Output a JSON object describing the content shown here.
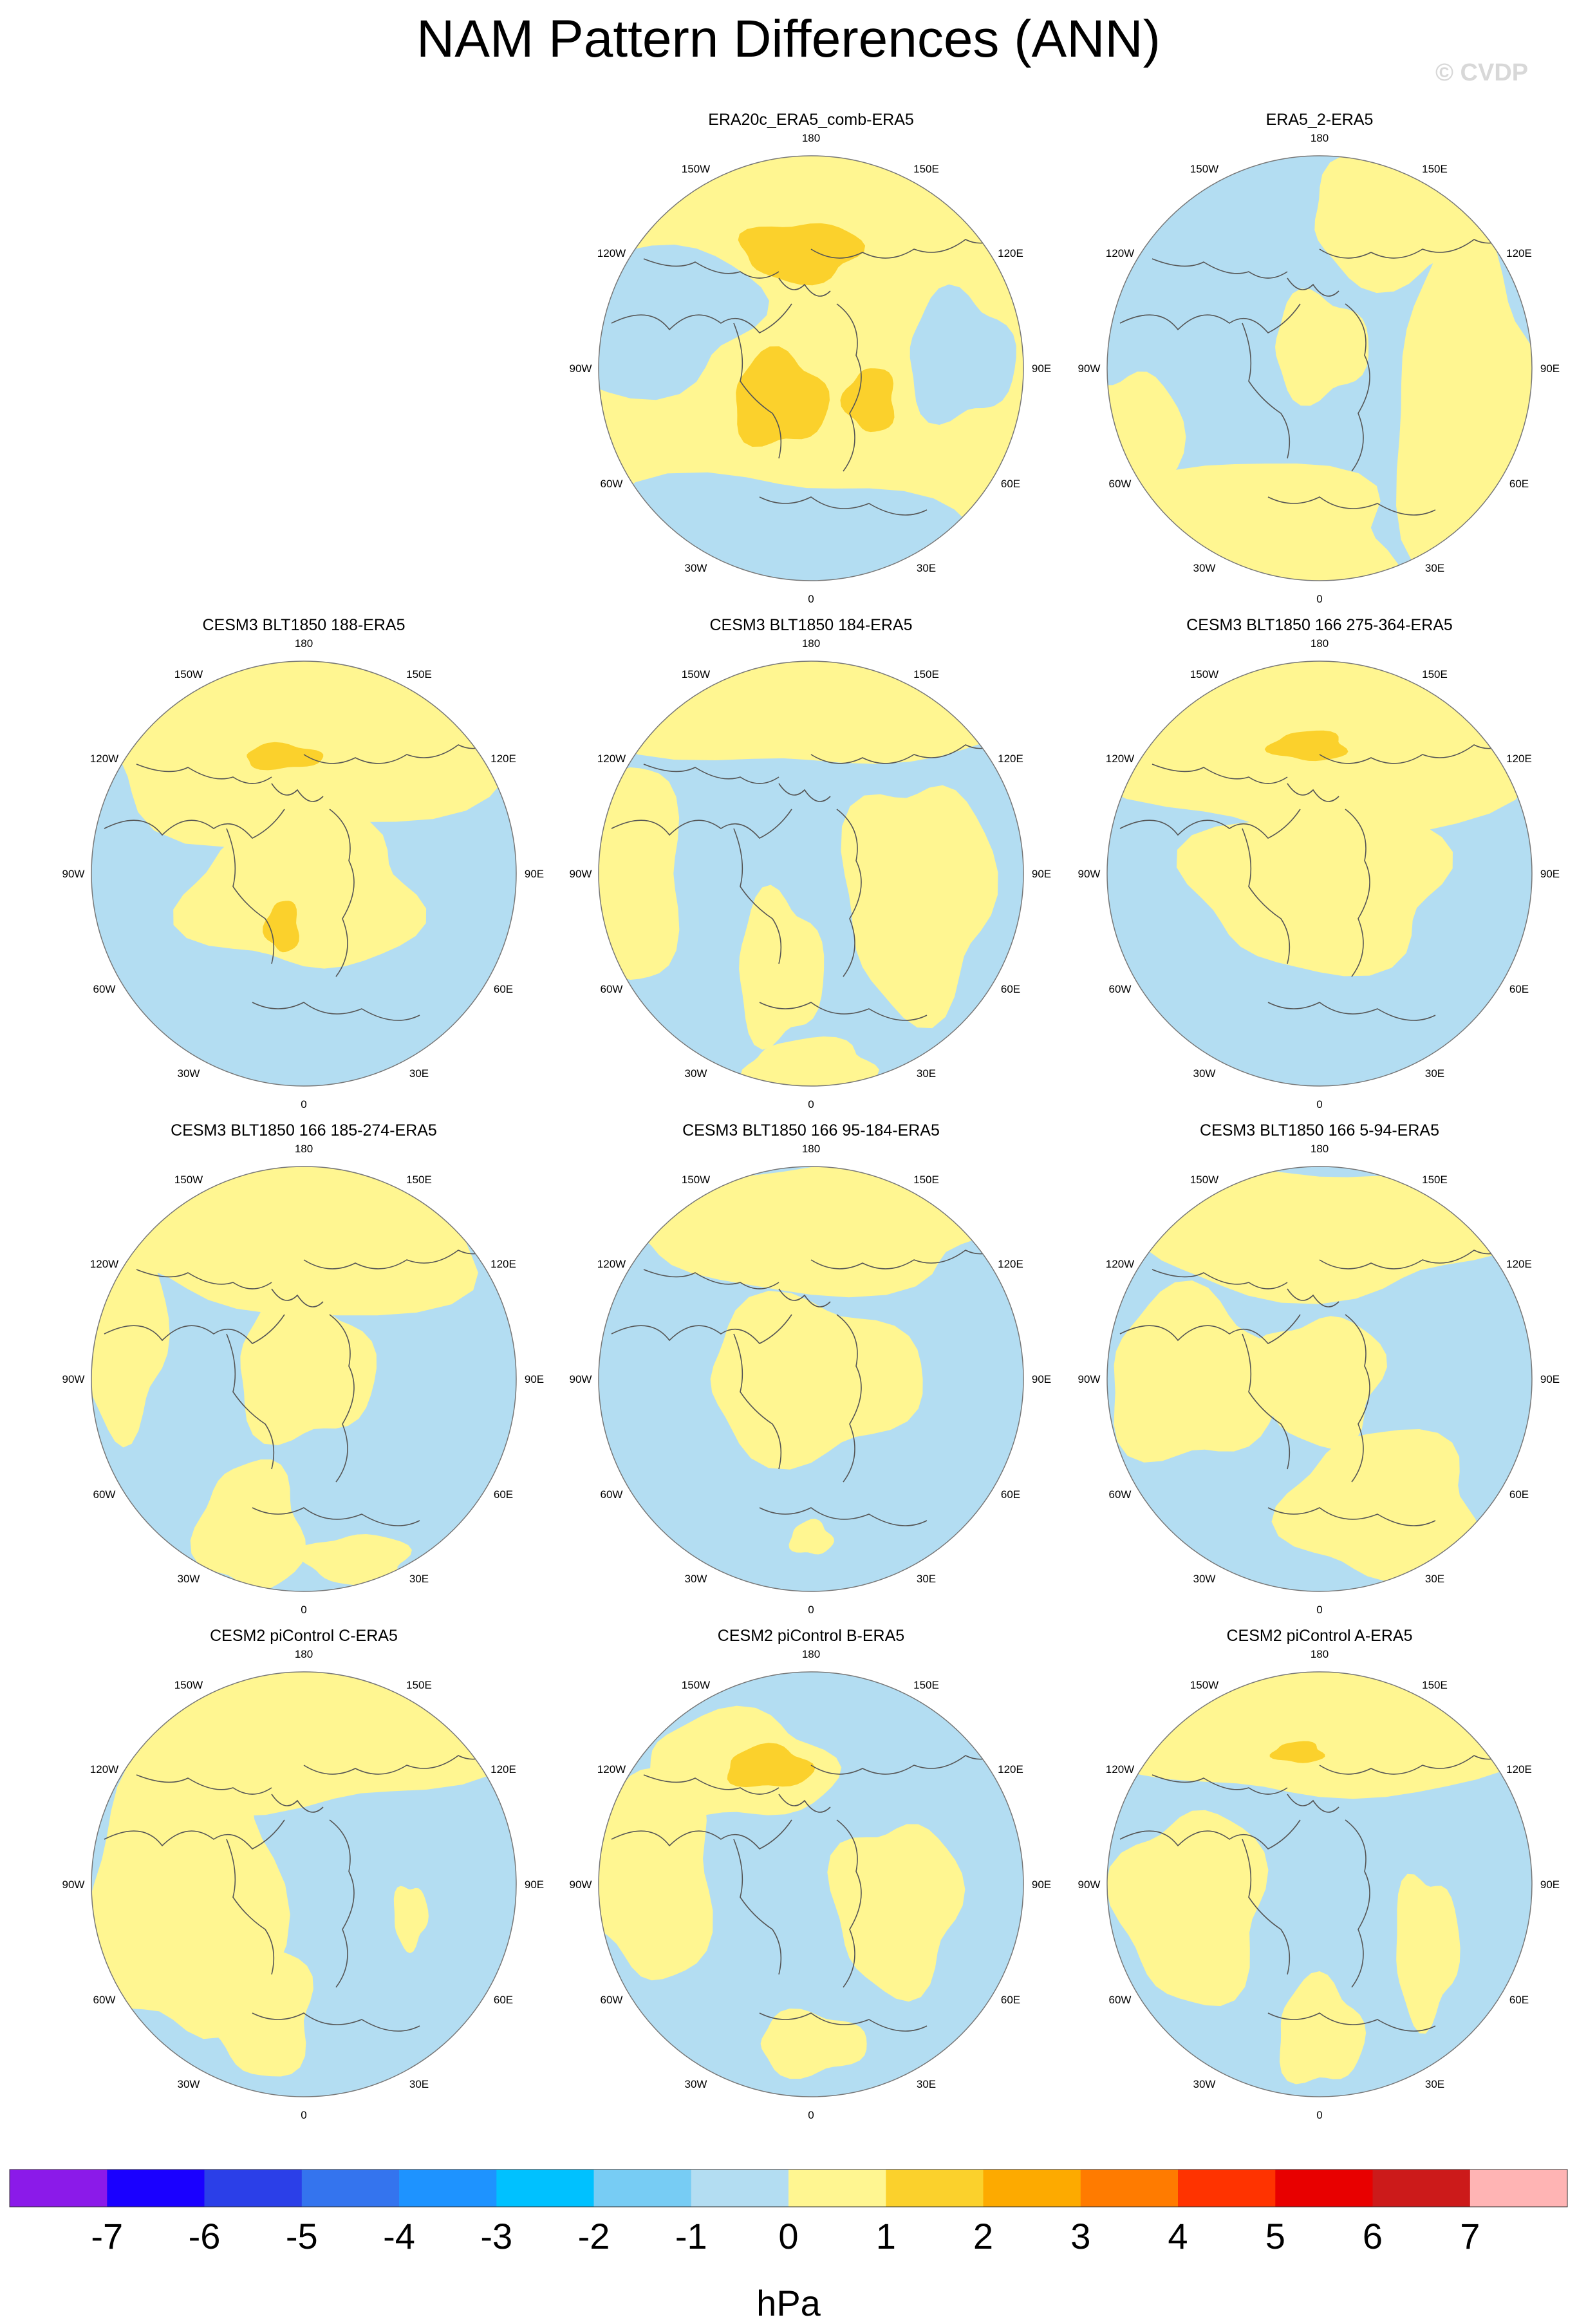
{
  "title": "NAM Pattern Differences (ANN)",
  "watermark": "© CVDP",
  "colors": {
    "positive_small": "#fff691",
    "positive_mid": "#fbd12c",
    "negative_small": "#b3ddf2",
    "coastline": "#555555"
  },
  "chart_data": {
    "type": "heatmap",
    "projection": "north-polar-stereographic",
    "units": "hPa",
    "longitude_labels": [
      "180",
      "150E",
      "120E",
      "90E",
      "60E",
      "30E",
      "0",
      "30W",
      "60W",
      "90W",
      "120W",
      "150W"
    ],
    "colorbar": {
      "colors": [
        "#8b1ae9",
        "#1a00ff",
        "#2b3fe8",
        "#3474ee",
        "#1e93ff",
        "#00c1ff",
        "#77ccf4",
        "#b3ddf2",
        "#fff691",
        "#fbd12c",
        "#fdaa00",
        "#ff7b00",
        "#ff3300",
        "#e80000",
        "#cc1a1a",
        "#ffb4b4"
      ],
      "ticks": [
        "-7",
        "-6",
        "-5",
        "-4",
        "-3",
        "-2",
        "-1",
        "0",
        "1",
        "2",
        "3",
        "4",
        "5",
        "6",
        "7"
      ]
    },
    "panels": [
      {
        "title": "ERA20c_ERA5_comb-ERA5",
        "row": 0,
        "col": 1,
        "base": "positive_small",
        "blue": [
          [
            -0.85,
            0.25,
            0.6,
            0.35
          ],
          [
            -0.15,
            -0.85,
            0.9,
            0.35
          ],
          [
            0.7,
            0.05,
            0.25,
            0.3
          ]
        ],
        "yellow": [],
        "orange": [
          [
            -0.05,
            0.55,
            0.28,
            0.14
          ],
          [
            -0.15,
            -0.15,
            0.22,
            0.22
          ],
          [
            0.28,
            -0.15,
            0.12,
            0.15
          ]
        ]
      },
      {
        "title": "ERA5_2-ERA5",
        "row": 0,
        "col": 2,
        "base": "negative_small",
        "blue": [],
        "yellow": [
          [
            0.35,
            0.7,
            0.4,
            0.3
          ],
          [
            0.7,
            -0.2,
            0.35,
            0.8
          ],
          [
            -0.4,
            -0.8,
            0.8,
            0.35
          ],
          [
            -0.9,
            -0.4,
            0.25,
            0.4
          ],
          [
            0.0,
            0.1,
            0.22,
            0.25
          ]
        ],
        "orange": []
      },
      {
        "title": "CESM3 BLT1850 188-ERA5",
        "row": 1,
        "col": 0,
        "base": "negative_small",
        "blue": [],
        "yellow": [
          [
            0.0,
            0.6,
            0.95,
            0.45
          ],
          [
            0.0,
            -0.1,
            0.55,
            0.35
          ]
        ],
        "orange": [
          [
            -0.1,
            0.55,
            0.18,
            0.06
          ],
          [
            -0.1,
            -0.25,
            0.08,
            0.12
          ]
        ]
      },
      {
        "title": "CESM3 BLT1850 184-ERA5",
        "row": 1,
        "col": 1,
        "base": "negative_small",
        "blue": [],
        "yellow": [
          [
            0.0,
            0.75,
            0.9,
            0.25
          ],
          [
            -0.85,
            0.0,
            0.25,
            0.5
          ],
          [
            0.5,
            -0.1,
            0.35,
            0.55
          ],
          [
            -0.15,
            -0.45,
            0.2,
            0.35
          ],
          [
            0.0,
            -0.9,
            0.3,
            0.12
          ]
        ],
        "orange": []
      },
      {
        "title": "CESM3 BLT1850 166 275-364-ERA5",
        "row": 1,
        "col": 2,
        "base": "negative_small",
        "blue": [],
        "yellow": [
          [
            0.0,
            0.6,
            0.95,
            0.45
          ],
          [
            0.0,
            -0.05,
            0.6,
            0.4
          ]
        ],
        "orange": [
          [
            -0.05,
            0.6,
            0.18,
            0.07
          ]
        ]
      },
      {
        "title": "CESM3 BLT1850 166 185-274-ERA5",
        "row": 2,
        "col": 0,
        "base": "negative_small",
        "blue": [],
        "yellow": [
          [
            0.0,
            0.7,
            0.95,
            0.4
          ],
          [
            -0.85,
            0.2,
            0.2,
            0.45
          ],
          [
            0.0,
            0.05,
            0.32,
            0.35
          ],
          [
            -0.25,
            -0.7,
            0.25,
            0.3
          ],
          [
            0.25,
            -0.85,
            0.25,
            0.12
          ]
        ],
        "orange": []
      },
      {
        "title": "CESM3 BLT1850 166 95-184-ERA5",
        "row": 2,
        "col": 1,
        "base": "negative_small",
        "blue": [],
        "yellow": [
          [
            0.0,
            0.72,
            0.9,
            0.3
          ],
          [
            0.0,
            0.0,
            0.5,
            0.38
          ],
          [
            0.0,
            -0.75,
            0.1,
            0.08
          ]
        ],
        "orange": []
      },
      {
        "title": "CESM3 BLT1850 166 5-94-ERA5",
        "row": 2,
        "col": 2,
        "base": "negative_small",
        "blue": [],
        "yellow": [
          [
            0.0,
            0.7,
            0.9,
            0.3
          ],
          [
            -0.6,
            0.0,
            0.4,
            0.4
          ],
          [
            0.3,
            -0.6,
            0.45,
            0.35
          ],
          [
            0.0,
            0.0,
            0.3,
            0.3
          ]
        ],
        "orange": []
      },
      {
        "title": "CESM2 piControl C-ERA5",
        "row": 3,
        "col": 0,
        "base": "negative_small",
        "blue": [],
        "yellow": [
          [
            0.0,
            0.7,
            0.95,
            0.35
          ],
          [
            -0.55,
            0.0,
            0.45,
            0.75
          ],
          [
            -0.2,
            -0.6,
            0.25,
            0.3
          ],
          [
            0.5,
            -0.15,
            0.08,
            0.15
          ]
        ],
        "orange": []
      },
      {
        "title": "CESM2 piControl B-ERA5",
        "row": 3,
        "col": 1,
        "base": "negative_small",
        "blue": [],
        "yellow": [
          [
            -0.35,
            0.55,
            0.45,
            0.25
          ],
          [
            -0.75,
            0.05,
            0.3,
            0.5
          ],
          [
            0.4,
            -0.1,
            0.3,
            0.4
          ],
          [
            0.0,
            -0.75,
            0.25,
            0.15
          ]
        ],
        "orange": [
          [
            -0.2,
            0.55,
            0.2,
            0.1
          ]
        ]
      },
      {
        "title": "CESM2 piControl A-ERA5",
        "row": 3,
        "col": 2,
        "base": "negative_small",
        "blue": [],
        "yellow": [
          [
            0.0,
            0.7,
            0.9,
            0.3
          ],
          [
            -0.6,
            -0.1,
            0.35,
            0.45
          ],
          [
            0.5,
            -0.3,
            0.15,
            0.35
          ],
          [
            0.0,
            -0.7,
            0.2,
            0.25
          ]
        ],
        "orange": [
          [
            -0.1,
            0.62,
            0.12,
            0.05
          ]
        ]
      }
    ]
  }
}
